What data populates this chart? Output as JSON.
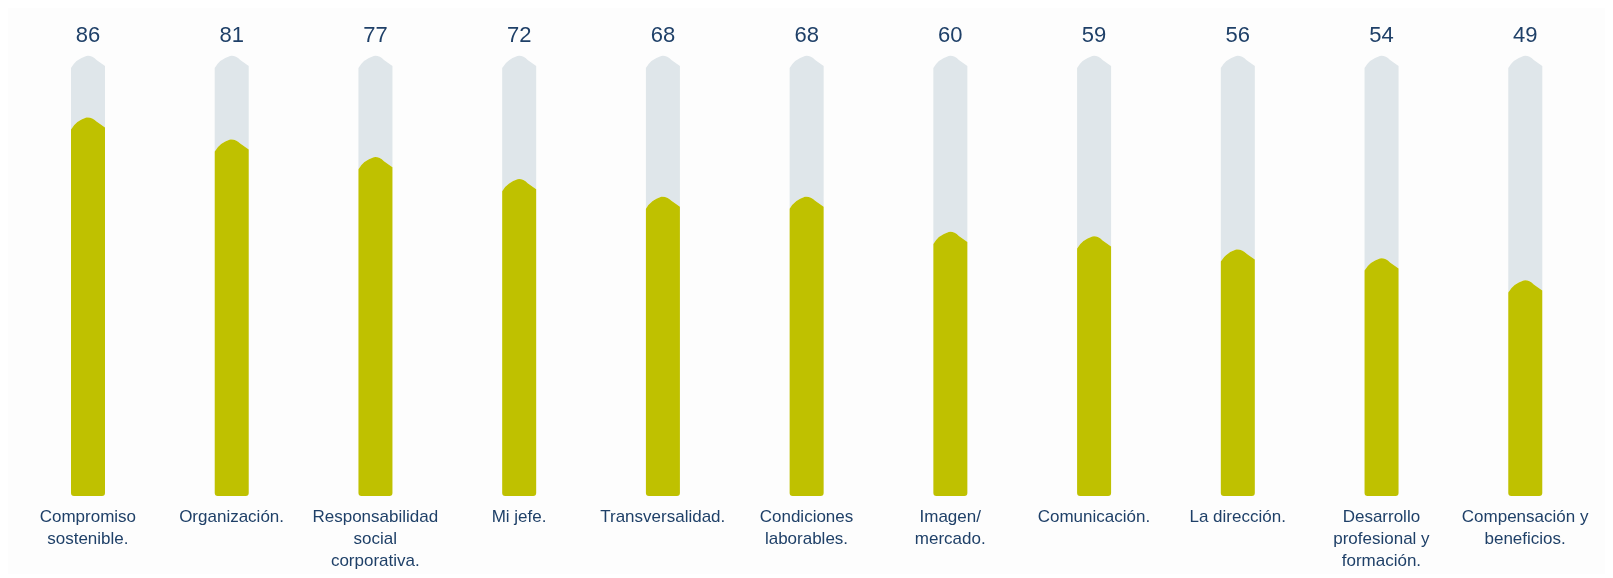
{
  "chart_data": {
    "type": "bar",
    "categories": [
      "Compromiso sostenible.",
      "Organización.",
      "Responsabilidad social corporativa.",
      "Mi jefe.",
      "Transversalidad.",
      "Condiciones laborables.",
      "Imagen/ mercado.",
      "Comunicación.",
      "La dirección.",
      "Desarrollo profesional y formación.",
      "Compensación y beneficios."
    ],
    "values": [
      86,
      81,
      77,
      72,
      68,
      68,
      60,
      59,
      56,
      54,
      49
    ],
    "color": "#bfc100",
    "data_labels": true
  }
}
